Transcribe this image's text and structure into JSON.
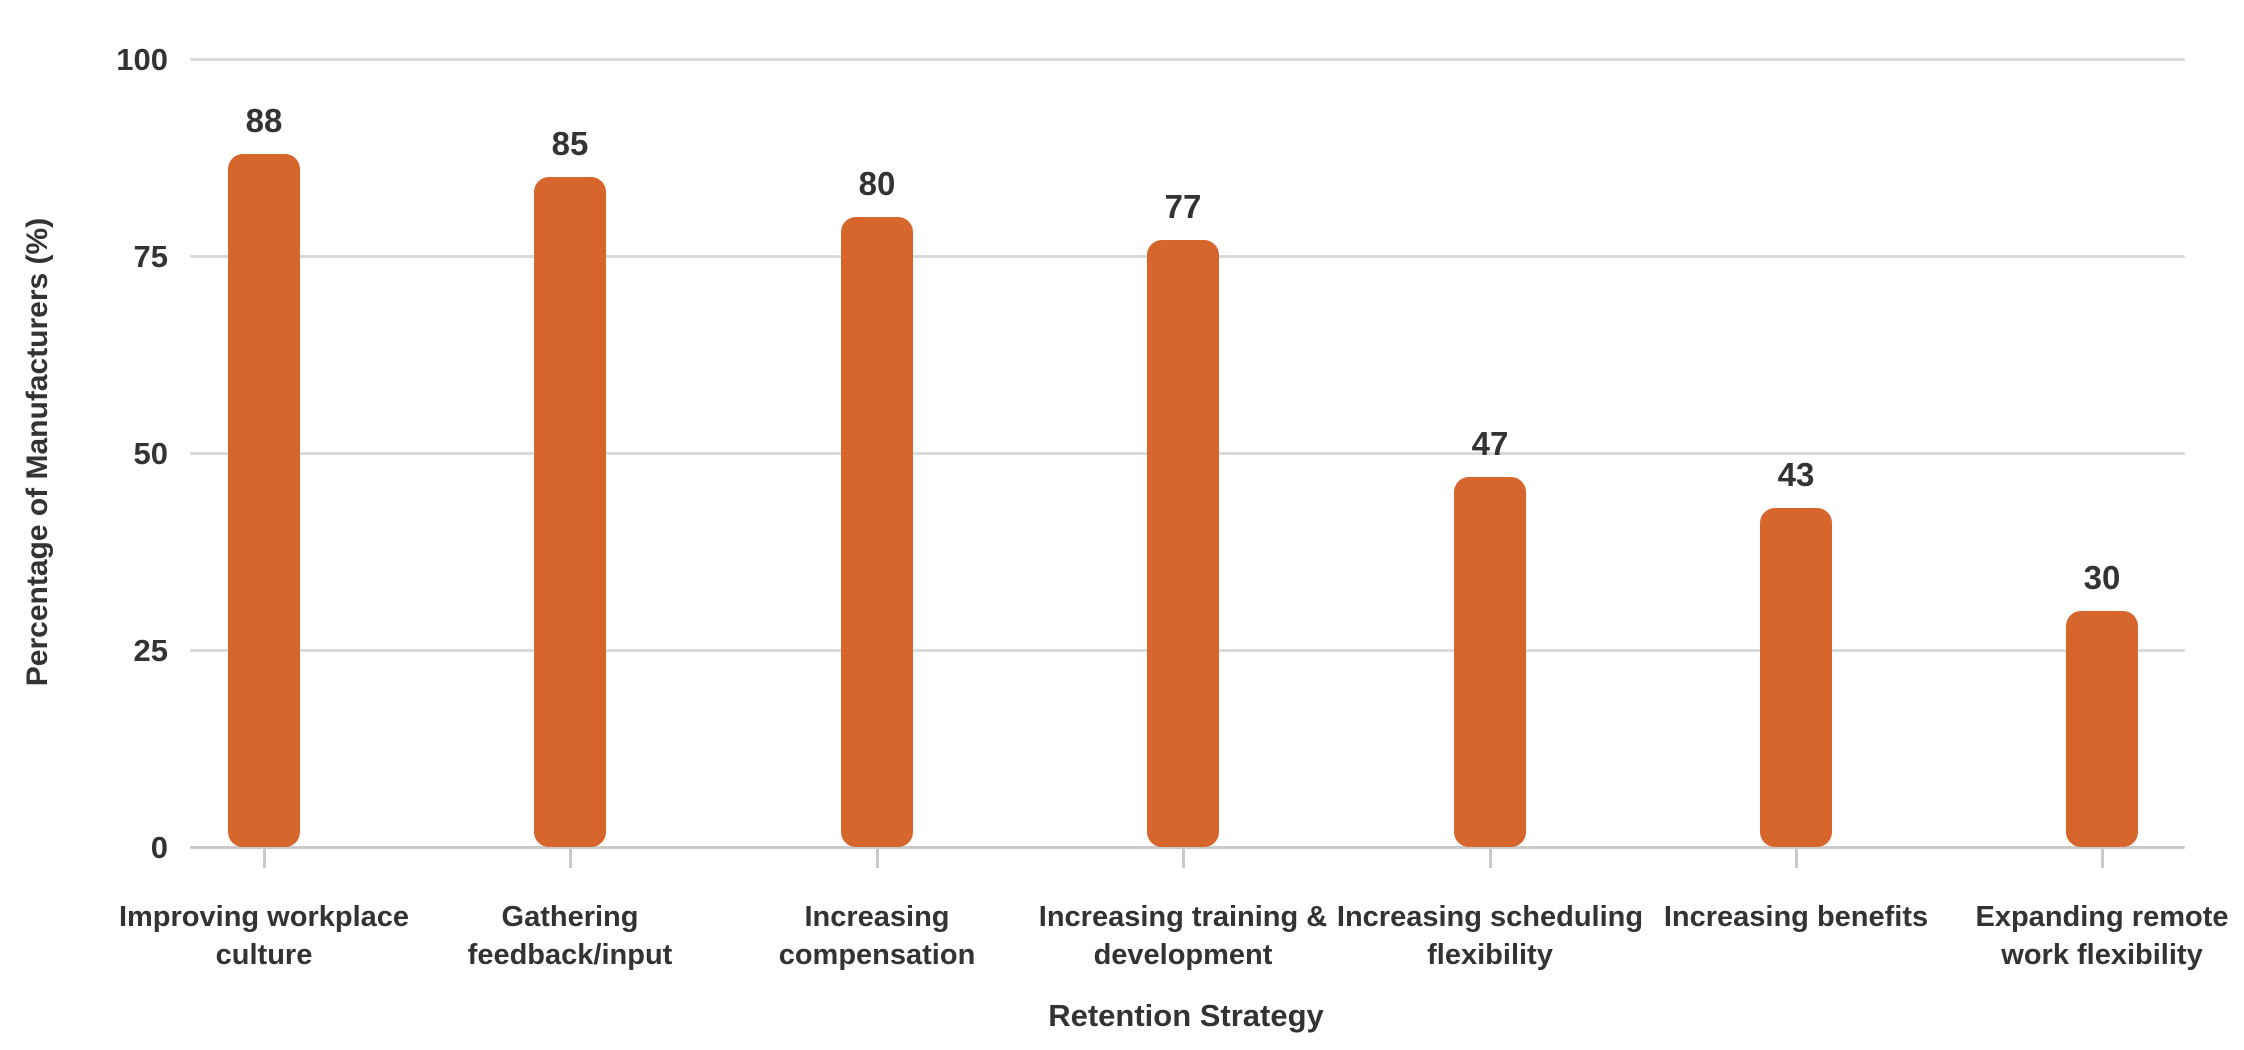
{
  "chart_data": {
    "type": "bar",
    "title": "",
    "xlabel": "Retention Strategy",
    "ylabel": "Percentage of Manufacturers (%)",
    "categories": [
      "Improving workplace culture",
      "Gathering feedback/input",
      "Increasing compensation",
      "Increasing training & development",
      "Increasing scheduling flexibility",
      "Increasing benefits",
      "Expanding remote work flexibility"
    ],
    "category_lines": [
      [
        "Improving workplace",
        "culture"
      ],
      [
        "Gathering",
        "feedback/input"
      ],
      [
        "Increasing",
        "compensation"
      ],
      [
        "Increasing training &",
        "development"
      ],
      [
        "Increasing scheduling",
        "flexibility"
      ],
      [
        "Increasing benefits"
      ],
      [
        "Expanding remote",
        "work flexibility"
      ]
    ],
    "values": [
      88,
      85,
      80,
      77,
      47,
      43,
      30
    ],
    "value_labels": [
      "88",
      "85",
      "80",
      "77",
      "47",
      "43",
      "30"
    ],
    "yticks": [
      0,
      25,
      50,
      75,
      100
    ],
    "ylim": [
      0,
      100
    ],
    "grid": true,
    "legend_position": "none",
    "colors": {
      "bar": "#D6662B",
      "text": "#333333",
      "gridline": "#DADADA",
      "axis_line": "#C9C9C9"
    }
  }
}
